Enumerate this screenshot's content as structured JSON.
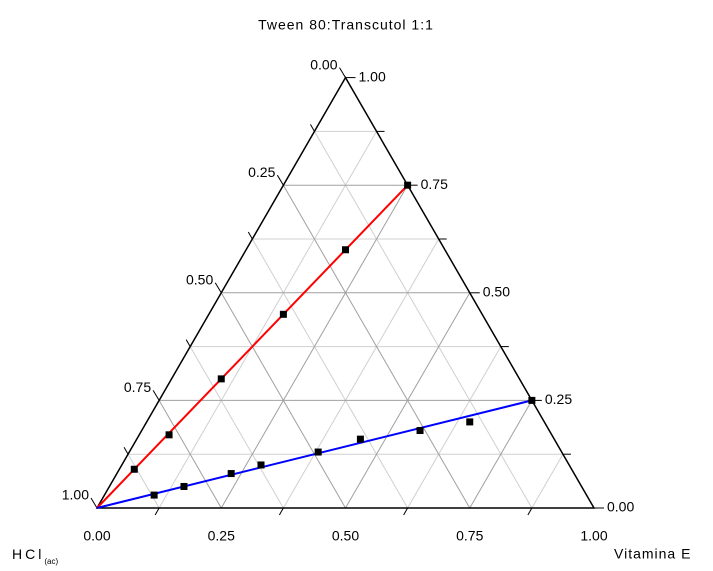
{
  "chart_data": {
    "type": "ternary",
    "title": "Tween 80:Transcutol 1:1",
    "axis_labels": {
      "left": "HCl",
      "left_sub": "(ac)",
      "right": "Vitamina E"
    },
    "ticks": [
      {
        "value": 0,
        "label": "0.00"
      },
      {
        "value": 0.25,
        "label": "0.25"
      },
      {
        "value": 0.5,
        "label": "0.50"
      },
      {
        "value": 0.75,
        "label": "0.75"
      },
      {
        "value": 1,
        "label": "1.00"
      }
    ],
    "minor_ticks": [
      0.125,
      0.375,
      0.625,
      0.875
    ],
    "grid": true,
    "series": [
      {
        "color": "#ff0000",
        "vitamina_e": [
          0.03,
          0.06,
          0.1,
          0.15,
          0.2,
          0.25
        ],
        "tween": [
          0.09,
          0.17,
          0.3,
          0.45,
          0.6,
          0.75
        ]
      },
      {
        "color": "#0000ff",
        "vitamina_e": [
          0.1,
          0.15,
          0.23,
          0.28,
          0.38,
          0.45,
          0.56,
          0.65,
          0.75
        ],
        "tween": [
          0.03,
          0.05,
          0.08,
          0.1,
          0.13,
          0.16,
          0.18,
          0.2,
          0.25
        ]
      }
    ]
  }
}
